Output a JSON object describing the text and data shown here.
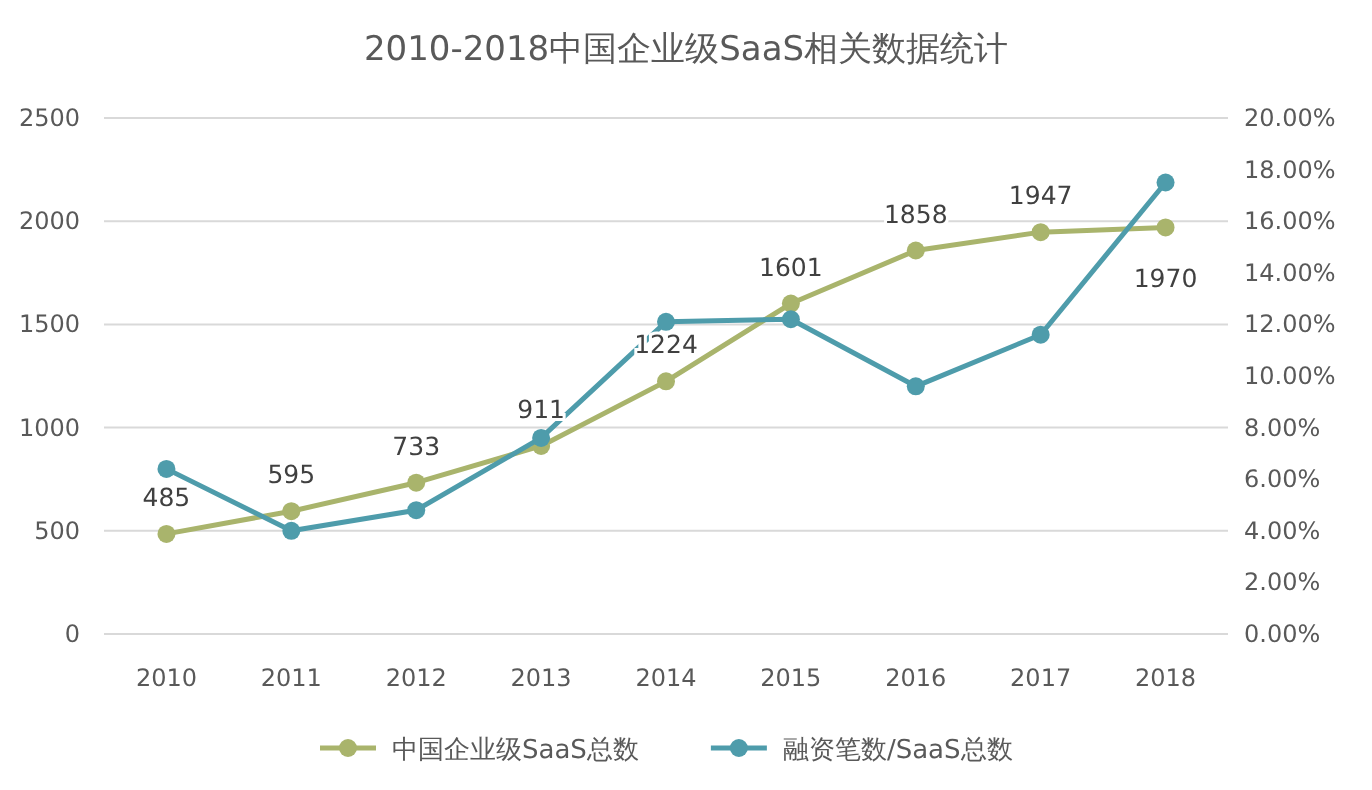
{
  "chart_data": {
    "type": "line",
    "title": "2010-2018中国企业级SaaS相关数据统计",
    "categories": [
      "2010",
      "2011",
      "2012",
      "2013",
      "2014",
      "2015",
      "2016",
      "2017",
      "2018"
    ],
    "series": [
      {
        "name": "中国企业级SaaS总数",
        "color": "#a9b46c",
        "values": [
          485,
          595,
          733,
          911,
          1224,
          1601,
          1858,
          1947,
          1970
        ]
      },
      {
        "name": "融资笔数/SaaS总数",
        "color": "#4e9cab",
        "axis": "y2",
        "values": [
          6.4,
          4.0,
          4.8,
          7.6,
          12.1,
          12.2,
          9.6,
          11.6,
          17.5
        ]
      }
    ],
    "value_labels": [
      "485",
      "595",
      "733",
      "911",
      "1224",
      "1601",
      "1858",
      "1947",
      "1970"
    ],
    "ylim": [
      0,
      2500
    ],
    "yticks": [
      0,
      500,
      1000,
      1500,
      2000,
      2500
    ],
    "y2lim": [
      0,
      20
    ],
    "y2ticks": [
      {
        "value": 0,
        "label": "0.00%"
      },
      {
        "value": 2,
        "label": "2.00%"
      },
      {
        "value": 4,
        "label": "4.00%"
      },
      {
        "value": 6,
        "label": "6.00%"
      },
      {
        "value": 8,
        "label": "8.00%"
      },
      {
        "value": 10,
        "label": "10.00%"
      },
      {
        "value": 12,
        "label": "12.00%"
      },
      {
        "value": 14,
        "label": "14.00%"
      },
      {
        "value": 16,
        "label": "16.00%"
      },
      {
        "value": 18,
        "label": "18.00%"
      },
      {
        "value": 20,
        "label": "20.00%"
      }
    ],
    "grid": "y",
    "legend": "bottom",
    "marker": "circle",
    "line_style": "solid"
  }
}
